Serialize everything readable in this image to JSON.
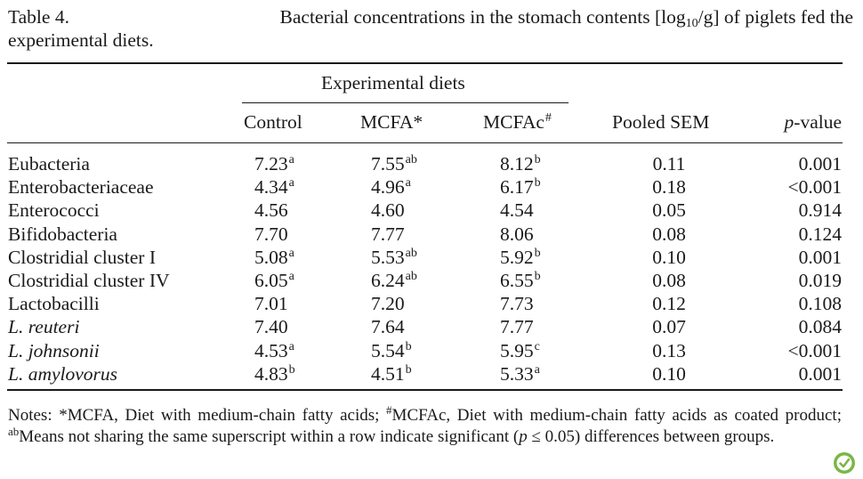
{
  "caption": {
    "label": "Table 4.",
    "text_before_sub": "Bacterial concentrations in the stomach contents [log",
    "sub": "10",
    "text_after_sub": "/g] of piglets fed the",
    "line2": "experimental diets."
  },
  "header": {
    "group": "Experimental diets",
    "col1": "Control",
    "col2": "MCFA*",
    "col3_main": "MCFAc",
    "col3_sup": "#",
    "col4": "Pooled SEM",
    "col5_italic": "p",
    "col5_rest": "-value"
  },
  "rows": [
    {
      "label": "Eubacteria",
      "italic": false,
      "c1": "7.23",
      "s1": "a",
      "c2": "7.55",
      "s2": "ab",
      "c3": "8.12",
      "s3": "b",
      "sem": "0.11",
      "p": "0.001"
    },
    {
      "label": "Enterobacteriaceae",
      "italic": false,
      "c1": "4.34",
      "s1": "a",
      "c2": "4.96",
      "s2": "a",
      "c3": "6.17",
      "s3": "b",
      "sem": "0.18",
      "p": "<0.001"
    },
    {
      "label": "Enterococci",
      "italic": false,
      "c1": "4.56",
      "s1": "",
      "c2": "4.60",
      "s2": "",
      "c3": "4.54",
      "s3": "",
      "sem": "0.05",
      "p": "0.914"
    },
    {
      "label": "Bifidobacteria",
      "italic": false,
      "c1": "7.70",
      "s1": "",
      "c2": "7.77",
      "s2": "",
      "c3": "8.06",
      "s3": "",
      "sem": "0.08",
      "p": "0.124"
    },
    {
      "label": "Clostridial cluster I",
      "italic": false,
      "c1": "5.08",
      "s1": "a",
      "c2": "5.53",
      "s2": "ab",
      "c3": "5.92",
      "s3": "b",
      "sem": "0.10",
      "p": "0.001"
    },
    {
      "label": "Clostridial cluster IV",
      "italic": false,
      "c1": "6.05",
      "s1": "a",
      "c2": "6.24",
      "s2": "ab",
      "c3": "6.55",
      "s3": "b",
      "sem": "0.08",
      "p": "0.019"
    },
    {
      "label": "Lactobacilli",
      "italic": false,
      "c1": "7.01",
      "s1": "",
      "c2": "7.20",
      "s2": "",
      "c3": "7.73",
      "s3": "",
      "sem": "0.12",
      "p": "0.108"
    },
    {
      "label": "L. reuteri",
      "italic": true,
      "c1": "7.40",
      "s1": "",
      "c2": "7.64",
      "s2": "",
      "c3": "7.77",
      "s3": "",
      "sem": "0.07",
      "p": "0.084"
    },
    {
      "label": "L. johnsonii",
      "italic": true,
      "c1": "4.53",
      "s1": "a",
      "c2": "5.54",
      "s2": "b",
      "c3": "5.95",
      "s3": "c",
      "sem": "0.13",
      "p": "<0.001"
    },
    {
      "label": "L. amylovorus",
      "italic": true,
      "c1": "4.83",
      "s1": "b",
      "c2": "4.51",
      "s2": "b",
      "c3": "5.33",
      "s3": "a",
      "sem": "0.10",
      "p": "0.001"
    }
  ],
  "notes": {
    "part1": "Notes: *MCFA, Diet with medium-chain fatty acids; ",
    "sup1": "#",
    "part2": "MCFAc, Diet with medium-chain fatty acids as coated product; ",
    "sup2": "ab",
    "part3": "Means not sharing the same superscript within a row indicate significant (",
    "p_italic": "p",
    "part4": " ≤ 0.05) differences between groups."
  },
  "logo_icon": "leaf-check-icon",
  "logo_color": "#7ab648"
}
